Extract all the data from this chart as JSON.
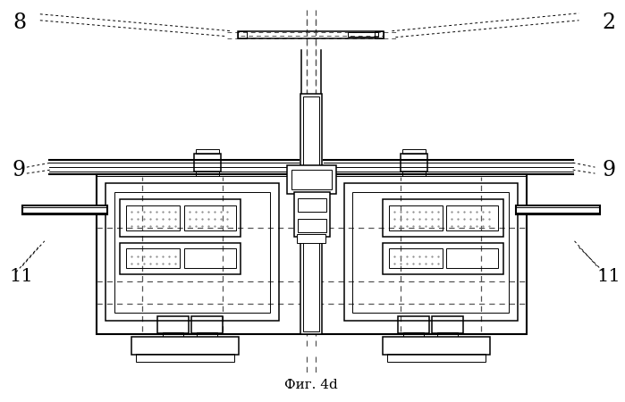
{
  "title": "Фиг. 4d",
  "bg_color": "#ffffff",
  "line_color": "#000000",
  "dashed_color": "#555555"
}
